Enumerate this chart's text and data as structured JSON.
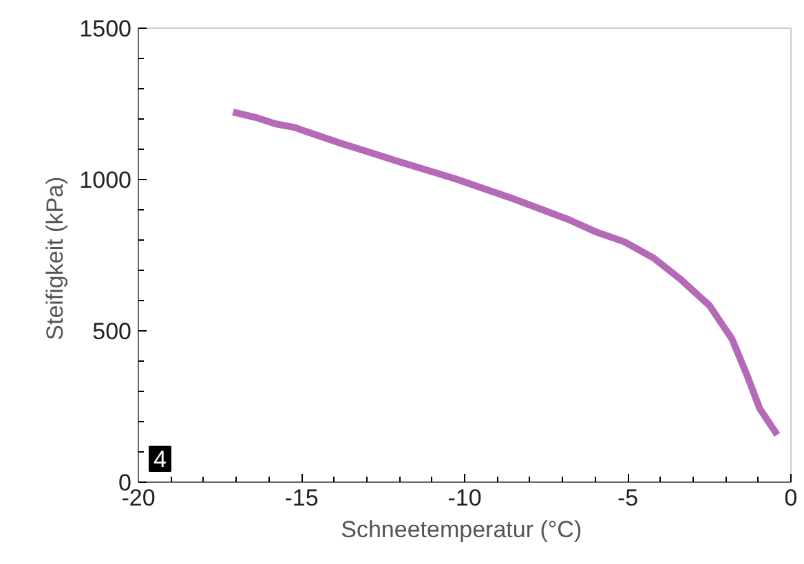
{
  "chart_data": {
    "type": "line",
    "xlabel": "Schneetemperatur  (°C)",
    "ylabel": "Steifigkeit  (kPa)",
    "annotations": [
      "4"
    ],
    "x": [
      -17.1,
      -16.4,
      -15.8,
      -15.2,
      -14.9,
      -13.8,
      -12.1,
      -10.3,
      -8.6,
      -6.8,
      -6.0,
      -5.1,
      -4.2,
      -3.4,
      -2.5,
      -1.8,
      -1.3,
      -0.96,
      -0.42
    ],
    "series": [
      {
        "color": "#b56ab8",
        "values": [
          1223,
          1205,
          1184,
          1172,
          1160,
          1120,
          1062,
          1003,
          940,
          867,
          828,
          794,
          740,
          672,
          584,
          472,
          341,
          244,
          156
        ]
      }
    ],
    "xlim": [
      -20,
      0
    ],
    "ylim": [
      0,
      1500
    ],
    "xticks": [
      -20,
      -15,
      -10,
      -5,
      0
    ],
    "yticks": [
      0,
      500,
      1000,
      1500
    ],
    "grid": false,
    "marker": "none",
    "line_style": "solid"
  }
}
